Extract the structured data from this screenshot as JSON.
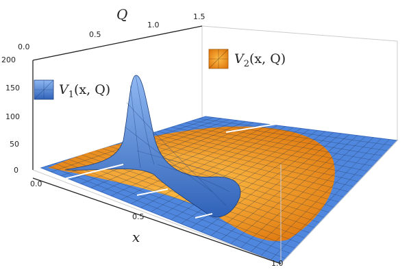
{
  "chart_data": {
    "type": "surface3d",
    "axes": {
      "x": {
        "label": "x",
        "ticks": [
          "0.0",
          "0.5",
          "1.0"
        ],
        "range": [
          0,
          1
        ]
      },
      "q": {
        "label": "Q",
        "ticks": [
          "0.0",
          "0.5",
          "1.0",
          "1.5"
        ],
        "range": [
          0,
          1.5
        ]
      },
      "z": {
        "ticks": [
          "0",
          "50",
          "100",
          "150",
          "200"
        ],
        "range": [
          0,
          200
        ]
      }
    },
    "series": [
      {
        "name": "V1(x, Q)",
        "legend_plain": "V",
        "legend_sub": "1",
        "legend_args": "(x, Q)",
        "color": "#4a7fd6",
        "peak": {
          "x": 0.25,
          "Q": 0.35,
          "z": 185
        }
      },
      {
        "name": "V2(x, Q)",
        "legend_plain": "V",
        "legend_sub": "2",
        "legend_args": "(x, Q)",
        "color": "#f0921e"
      }
    ],
    "box": true,
    "mesh": true
  }
}
